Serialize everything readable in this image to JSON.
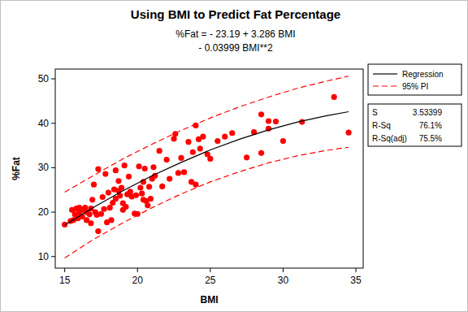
{
  "chart_data": {
    "type": "scatter",
    "title": "Using BMI to Predict Fat Percentage",
    "subtitle": [
      "%Fat = - 23.19 + 3.286 BMI",
      "- 0.03999 BMI**2"
    ],
    "x_label": "BMI",
    "y_label": "%Fat",
    "xlim": [
      14.35,
      35.5
    ],
    "ylim": [
      7.4,
      52.2
    ],
    "xticks": [
      15,
      20,
      25,
      30,
      35
    ],
    "yticks": [
      10,
      20,
      30,
      40,
      50
    ],
    "grid": false,
    "legend": "right",
    "series": [
      {
        "type": "scatter",
        "color": "#ff0000",
        "marker": "circle",
        "x": [
          15.0,
          15.4,
          15.5,
          15.6,
          15.7,
          15.8,
          15.9,
          16.0,
          16.0,
          16.1,
          16.2,
          16.3,
          16.4,
          16.5,
          16.5,
          16.7,
          16.8,
          16.8,
          16.9,
          17.0,
          17.1,
          17.2,
          17.3,
          17.3,
          17.5,
          17.6,
          17.7,
          17.8,
          17.9,
          18.0,
          18.1,
          18.2,
          18.3,
          18.4,
          18.5,
          18.5,
          18.7,
          18.7,
          18.8,
          18.9,
          19.0,
          19.0,
          19.1,
          19.2,
          19.3,
          19.4,
          19.5,
          19.6,
          19.8,
          19.9,
          20.0,
          20.1,
          20.2,
          20.3,
          20.4,
          20.4,
          20.5,
          20.6,
          20.7,
          20.8,
          20.9,
          21.0,
          21.1,
          21.2,
          21.5,
          21.7,
          22.0,
          22.2,
          22.5,
          22.6,
          22.8,
          23.0,
          23.2,
          23.5,
          23.7,
          23.8,
          24.0,
          24.0,
          24.2,
          24.3,
          24.5,
          24.8,
          25.0,
          25.5,
          26.0,
          26.5,
          27.5,
          28.0,
          28.5,
          28.5,
          29.0,
          29.0,
          29.5,
          30.0,
          31.3,
          33.5,
          34.5
        ],
        "values": [
          17.2,
          18.0,
          20.5,
          18.2,
          19.5,
          20.8,
          18.6,
          19.8,
          21.0,
          20.4,
          19.0,
          20.6,
          21.0,
          20.0,
          18.2,
          19.5,
          17.5,
          20.8,
          22.8,
          26.2,
          20.0,
          19.4,
          15.7,
          29.7,
          19.6,
          23.4,
          20.7,
          28.6,
          17.7,
          24.4,
          21.0,
          18.2,
          22.1,
          25.1,
          29.4,
          23.0,
          27.0,
          24.8,
          23.7,
          25.5,
          22.0,
          20.5,
          30.5,
          21.2,
          24.0,
          28.0,
          24.6,
          23.5,
          19.7,
          23.8,
          19.6,
          30.3,
          25.5,
          24.2,
          26.8,
          22.8,
          29.8,
          22.5,
          21.5,
          25.7,
          23.0,
          27.5,
          30.1,
          28.2,
          33.8,
          25.8,
          31.8,
          27.5,
          36.5,
          37.6,
          28.8,
          32.2,
          29.0,
          35.8,
          26.8,
          33.5,
          39.5,
          26.2,
          36.4,
          34.3,
          37.0,
          33.0,
          32.0,
          36.0,
          37.0,
          37.8,
          32.3,
          38.0,
          33.3,
          42.0,
          38.8,
          40.5,
          40.4,
          36.0,
          40.3,
          45.9,
          37.9
        ]
      },
      {
        "name": "Regression",
        "type": "line",
        "color": "#000000",
        "line_style": "solid",
        "x": [
          15,
          17,
          19,
          21,
          23,
          25,
          27,
          29,
          31,
          33,
          34.5
        ],
        "values": [
          17.1,
          21.1,
          24.8,
          28.2,
          31.2,
          34.0,
          36.4,
          38.5,
          40.3,
          41.7,
          42.6
        ]
      },
      {
        "name": "95% PI",
        "type": "line",
        "color": "#ff0000",
        "line_style": "dashed",
        "x": [
          15,
          17,
          19,
          21,
          23,
          25,
          27,
          29,
          31,
          33,
          34.5
        ],
        "values": [
          24.5,
          28.3,
          32.0,
          35.3,
          38.4,
          41.2,
          43.7,
          45.9,
          47.9,
          49.5,
          50.6
        ],
        "lower": [
          9.7,
          13.9,
          17.6,
          21.0,
          24.1,
          26.8,
          29.1,
          31.1,
          32.7,
          33.9,
          34.6
        ]
      }
    ],
    "annotations": [
      {
        "label": "S",
        "value": "3.53399"
      },
      {
        "label": "R-Sq",
        "value": "76.1%"
      },
      {
        "label": "R-Sq(adj)",
        "value": "75.5%"
      }
    ]
  }
}
